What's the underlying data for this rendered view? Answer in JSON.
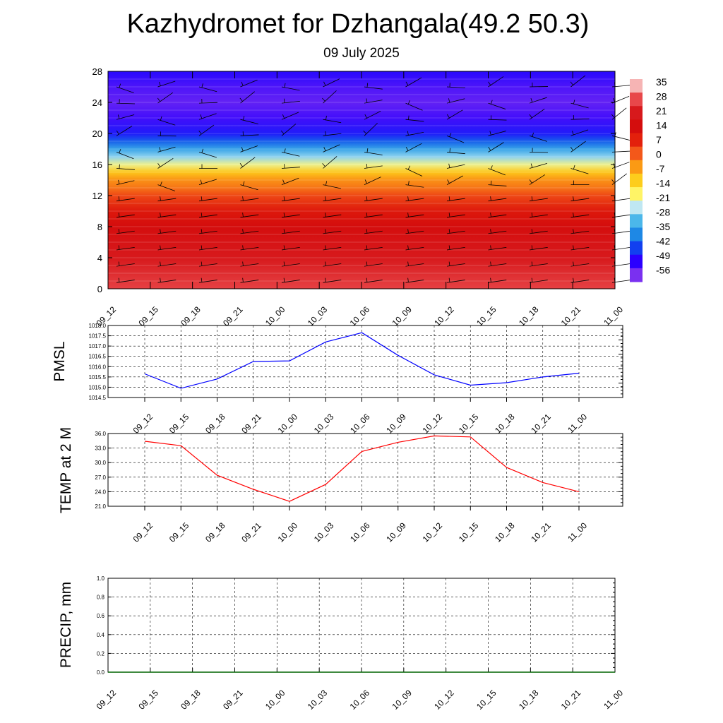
{
  "title": "Kazhydromet for Dzhangala(49.2 50.3)",
  "subtitle": "09 July 2025",
  "chart_data": [
    {
      "type": "heatmap",
      "panel": "temperature cross-section with wind barbs",
      "y_ticks": [
        "0",
        "4",
        "8",
        "12",
        "16",
        "20",
        "24",
        "28"
      ],
      "ylim": [
        0,
        28
      ],
      "x_ticks": [
        "09_12",
        "09_15",
        "09_18",
        "09_21",
        "10_00",
        "10_03",
        "10_06",
        "10_09",
        "10_12",
        "10_15",
        "10_18",
        "10_21",
        "11_00"
      ],
      "colorbar": {
        "labels": [
          "35",
          "28",
          "21",
          "14",
          "7",
          "0",
          "-7",
          "-14",
          "-21",
          "-28",
          "-35",
          "-42",
          "-49",
          "-56"
        ],
        "colors": [
          "#f6b4b4",
          "#e8474a",
          "#d7191c",
          "#d40d0d",
          "#e3200c",
          "#f3581a",
          "#fb9a14",
          "#fdcd1c",
          "#fff466",
          "#bfe7f2",
          "#4bb7ea",
          "#1e88e5",
          "#1240f0",
          "#2b00ff",
          "#7a30f0"
        ]
      },
      "levels": [
        0,
        2,
        4,
        6,
        8,
        10,
        12,
        13,
        14,
        15,
        16,
        17,
        18,
        19,
        20,
        22,
        24,
        26,
        28
      ],
      "level_temps": [
        30,
        27,
        24,
        21,
        17,
        13,
        5,
        0,
        -3,
        -10,
        -20,
        -28,
        -35,
        -43,
        -50,
        -55,
        -58,
        -56,
        -52
      ]
    },
    {
      "type": "line",
      "ylabel": "PMSL",
      "x": [
        "09_12",
        "09_15",
        "09_18",
        "09_21",
        "10_00",
        "10_03",
        "10_06",
        "10_09",
        "10_12",
        "10_15",
        "10_18",
        "10_21",
        "11_00"
      ],
      "values": [
        1015.65,
        1014.95,
        1015.4,
        1016.25,
        1016.28,
        1017.2,
        1017.65,
        1016.55,
        1015.6,
        1015.1,
        1015.22,
        1015.5,
        1015.68
      ],
      "ylim": [
        1014.5,
        1018.0
      ],
      "y_ticks": [
        "1014.5",
        "1015.0",
        "1015.5",
        "1016.0",
        "1016.5",
        "1017.0",
        "1017.5",
        "1018.0"
      ],
      "color": "#0000ff"
    },
    {
      "type": "line",
      "ylabel": "TEMP at 2 M",
      "x": [
        "09_12",
        "09_15",
        "09_18",
        "09_21",
        "10_00",
        "10_03",
        "10_06",
        "10_09",
        "10_12",
        "10_15",
        "10_18",
        "10_21",
        "11_00"
      ],
      "values": [
        34.4,
        33.5,
        27.4,
        24.5,
        22.0,
        25.5,
        32.3,
        34.2,
        35.5,
        35.3,
        29.0,
        25.9,
        24.0
      ],
      "ylim": [
        21.0,
        36.0
      ],
      "y_ticks": [
        "21.0",
        "24.0",
        "27.0",
        "30.0",
        "33.0",
        "36.0"
      ],
      "color": "#ff0000"
    },
    {
      "type": "line",
      "ylabel": "PRECIP, mm",
      "x": [
        "09_12",
        "09_15",
        "09_18",
        "09_21",
        "10_00",
        "10_03",
        "10_06",
        "10_09",
        "10_12",
        "10_15",
        "10_18",
        "10_21",
        "11_00"
      ],
      "values": [
        0,
        0,
        0,
        0,
        0,
        0,
        0,
        0,
        0,
        0,
        0,
        0,
        0
      ],
      "ylim": [
        0.0,
        1.0
      ],
      "y_ticks": [
        "0.0",
        "0.2",
        "0.4",
        "0.6",
        "0.8",
        "1.0"
      ],
      "color": "#006400"
    }
  ]
}
